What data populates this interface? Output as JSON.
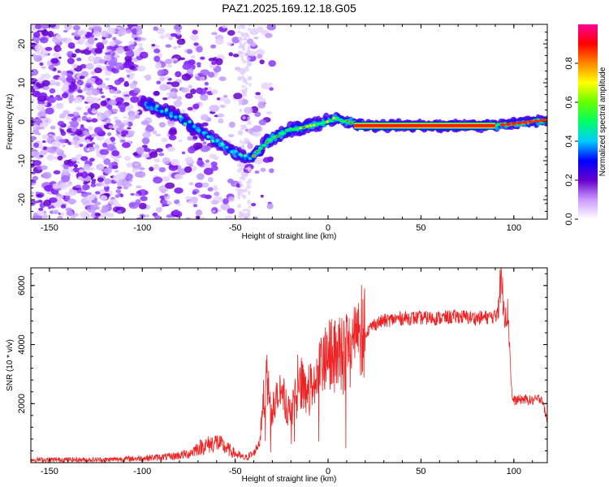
{
  "title": "PAZ1.2025.169.12.18.G05",
  "chart_data": [
    {
      "type": "heatmap",
      "xlabel": "Height of straight line (km)",
      "ylabel": "Frequency (Hz)",
      "xlim": [
        -160,
        118
      ],
      "ylim": [
        -25,
        25
      ],
      "xticks": [
        "-150",
        "-100",
        "-50",
        "0",
        "50",
        "100"
      ],
      "yticks": [
        "-20",
        "-10",
        "0",
        "10",
        "20"
      ],
      "colorbar": {
        "label": "Normalized spectral amplitude",
        "ticks": [
          "0.0",
          "0.2",
          "0.4",
          "0.6",
          "0.8"
        ],
        "range": [
          0,
          1
        ],
        "colormap": [
          "#ffffff",
          "#cc99ff",
          "#6600cc",
          "#0000ff",
          "#00ccff",
          "#00ff66",
          "#66ff00",
          "#ffff00",
          "#ff8800",
          "#ff0000",
          "#ff0099"
        ]
      },
      "ridge": {
        "x": [
          -100,
          -90,
          -80,
          -70,
          -60,
          -50,
          -45,
          -40,
          -35,
          -30,
          -20,
          -10,
          0,
          5,
          10,
          20,
          50,
          90,
          100,
          118
        ],
        "y": [
          5,
          3,
          1,
          -2,
          -5,
          -8,
          -9,
          -9,
          -6,
          -4,
          -2,
          -1,
          0,
          1,
          0,
          -1,
          -1,
          -1,
          -0.5,
          0.5
        ]
      }
    },
    {
      "type": "line",
      "xlabel": "Height of straight line (km)",
      "ylabel": "SNR (10 * v/v)",
      "xlim": [
        -160,
        118
      ],
      "ylim": [
        0,
        6600
      ],
      "xticks": [
        "-150",
        "-100",
        "-50",
        "0",
        "50",
        "100"
      ],
      "yticks": [
        "2000",
        "4000",
        "6000"
      ],
      "color": "#ee2222",
      "series": [
        {
          "x": [
            -160,
            -140,
            -120,
            -100,
            -85,
            -75,
            -70,
            -65,
            -60,
            -55,
            -50,
            -45,
            -40,
            -37,
            -35,
            -33,
            -30,
            -25,
            -20,
            -15,
            -10,
            -5,
            0,
            5,
            10,
            15,
            20,
            25,
            30,
            40,
            50,
            60,
            70,
            80,
            90,
            92,
            93,
            95,
            97,
            98,
            99,
            100,
            105,
            110,
            115,
            118
          ],
          "y": [
            100,
            100,
            100,
            150,
            200,
            300,
            500,
            600,
            700,
            500,
            300,
            150,
            300,
            700,
            1800,
            2800,
            1800,
            2400,
            1600,
            2700,
            2500,
            3000,
            3600,
            3600,
            3800,
            4200,
            4400,
            4700,
            4800,
            4900,
            4900,
            4900,
            4950,
            4900,
            4950,
            5600,
            6200,
            5200,
            5000,
            3600,
            2200,
            2100,
            2150,
            2100,
            2200,
            1400
          ]
        }
      ]
    }
  ]
}
